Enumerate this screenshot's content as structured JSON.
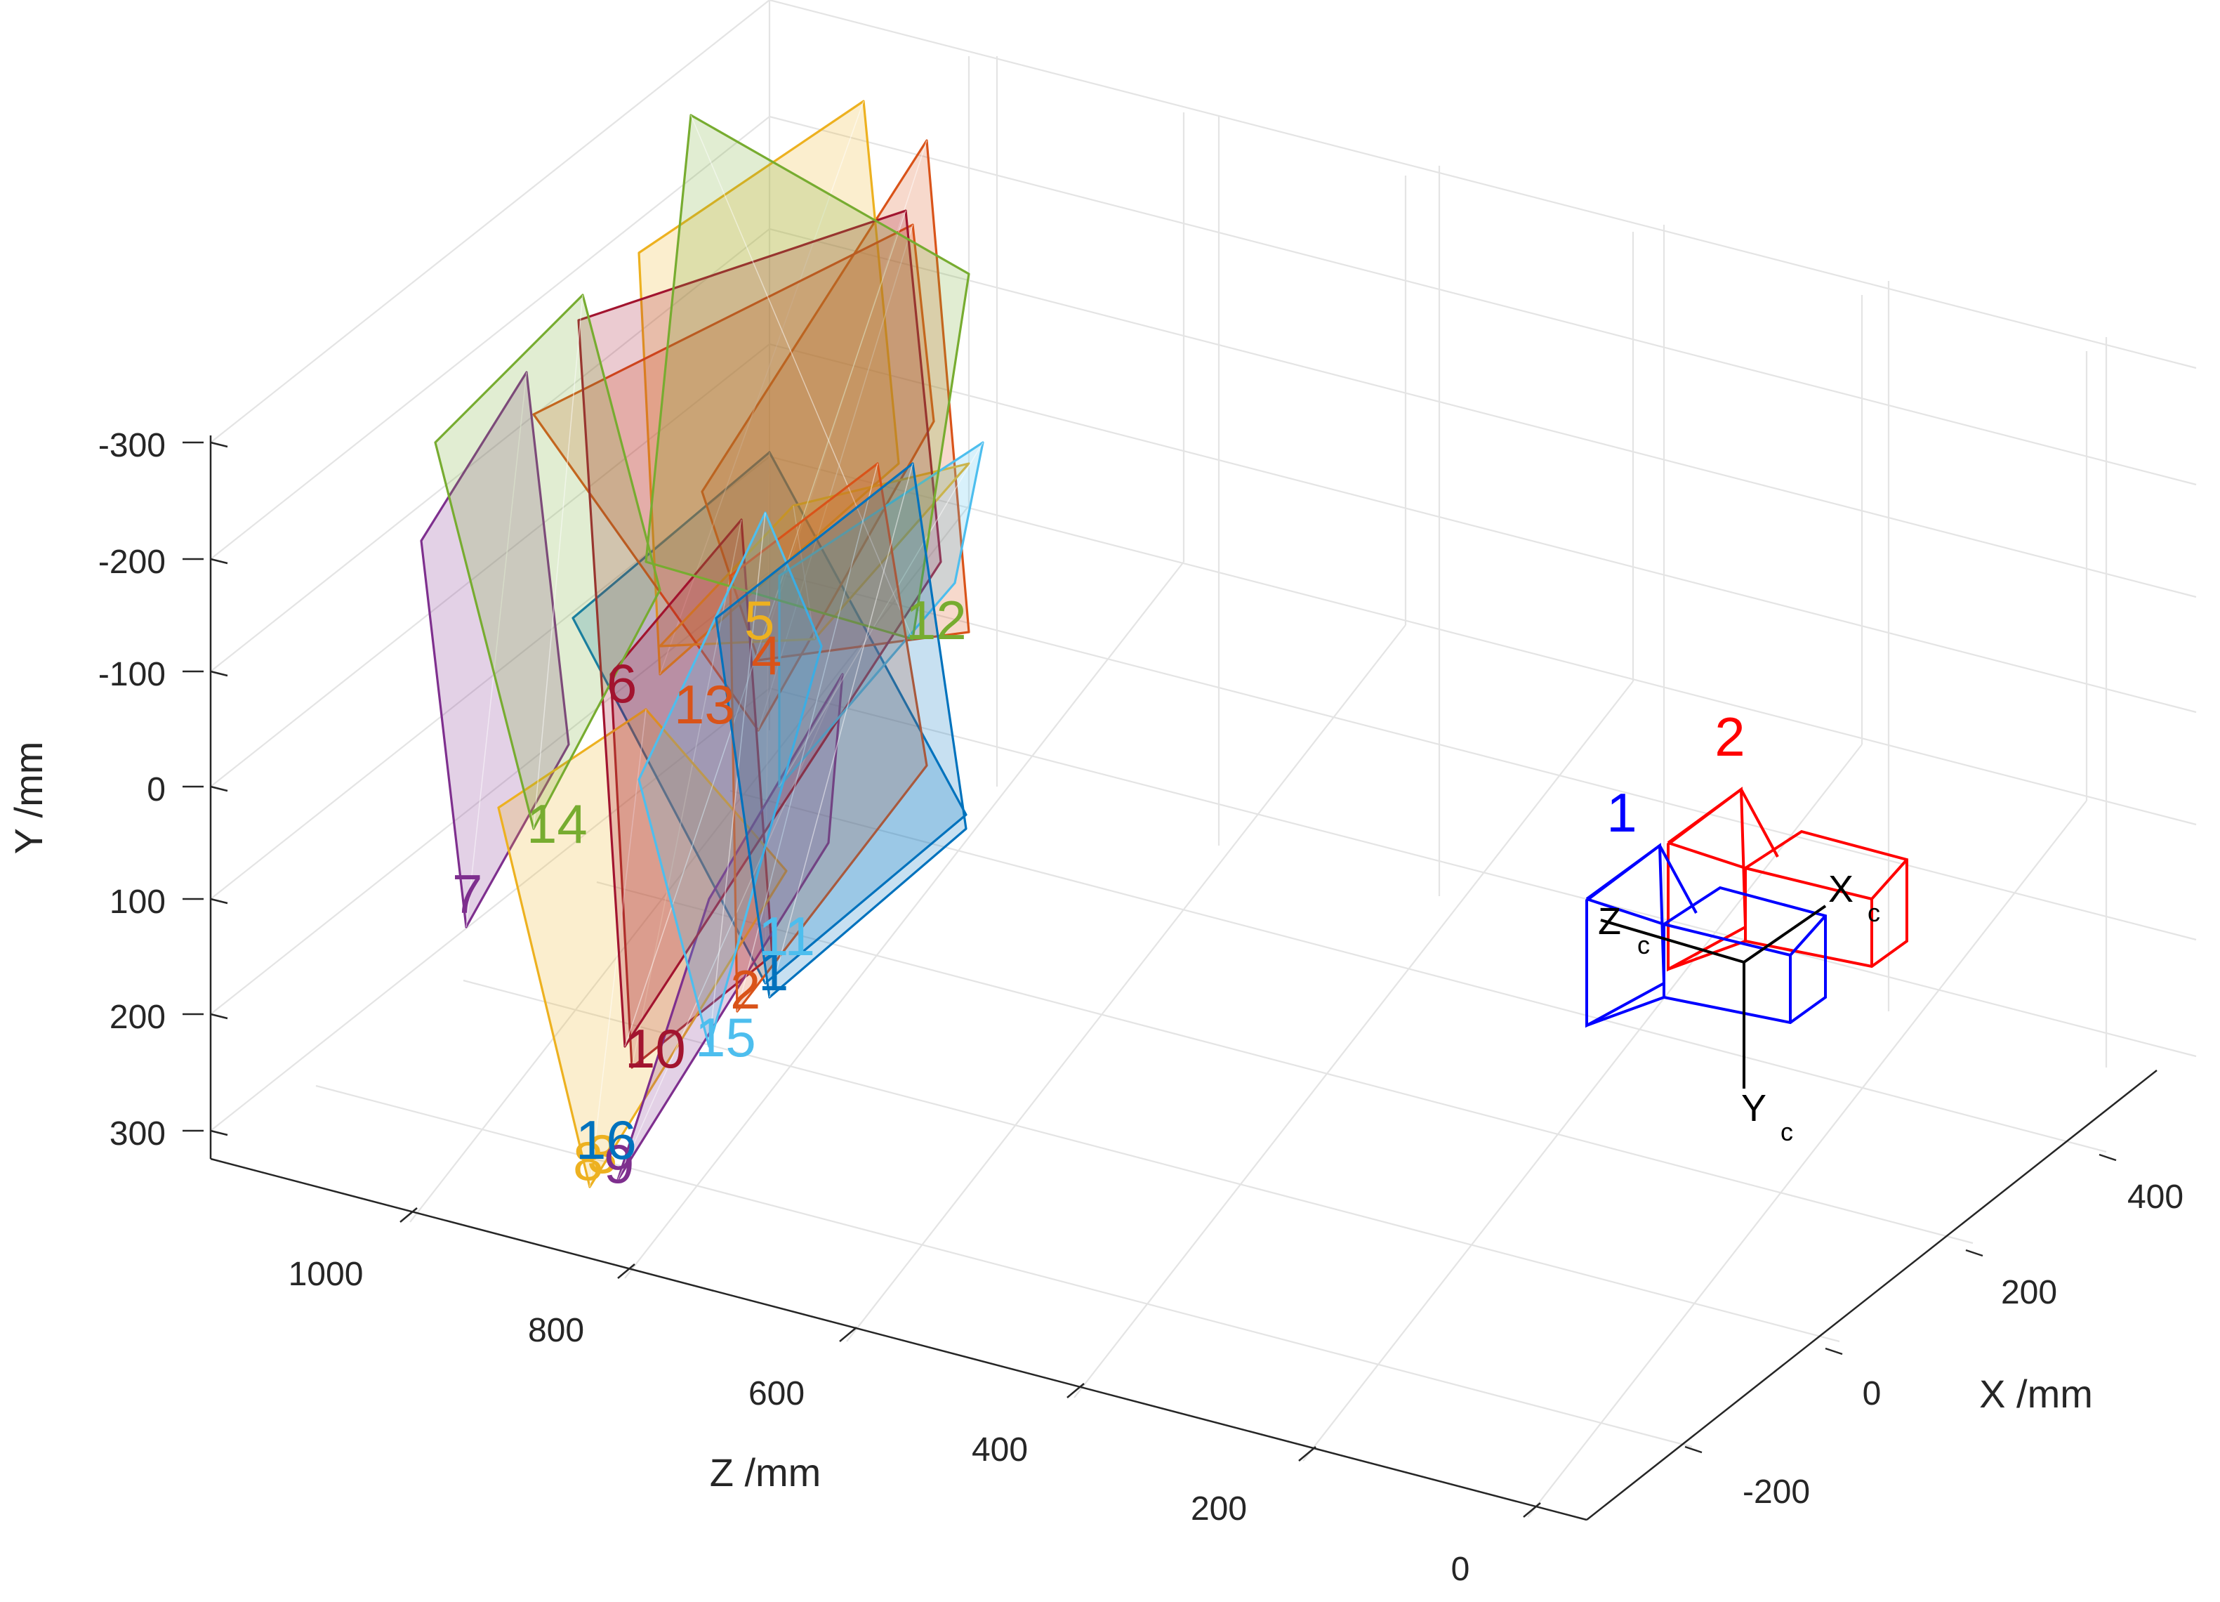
{
  "chart_data": {
    "type": "3d-extrinsics",
    "axes": {
      "x": {
        "label": "X /mm",
        "ticks": [
          "-200",
          "0",
          "200",
          "400"
        ]
      },
      "y": {
        "label": "Y /mm",
        "ticks": [
          "-300",
          "-200",
          "-100",
          "0",
          "100",
          "200",
          "300"
        ]
      },
      "z": {
        "label": "Z /mm",
        "ticks": [
          "1000",
          "800",
          "600",
          "400",
          "200",
          "0"
        ]
      }
    },
    "grid": true,
    "cameras": [
      {
        "label": "1",
        "color": "#0000ff"
      },
      {
        "label": "2",
        "color": "#ff0000"
      }
    ],
    "camera_frame": {
      "x": "X",
      "y": "Y",
      "z": "Z",
      "subscript": "c"
    },
    "boards": [
      {
        "label": "1",
        "color": "#0072bd"
      },
      {
        "label": "2",
        "color": "#d95319"
      },
      {
        "label": "3",
        "color": "#edb120"
      },
      {
        "label": "4",
        "color": "#d95319"
      },
      {
        "label": "5",
        "color": "#edb120"
      },
      {
        "label": "6",
        "color": "#a2142f"
      },
      {
        "label": "7",
        "color": "#7e2f8e"
      },
      {
        "label": "8",
        "color": "#edb120"
      },
      {
        "label": "9",
        "color": "#7e2f8e"
      },
      {
        "label": "10",
        "color": "#a2142f"
      },
      {
        "label": "11",
        "color": "#4dbeee"
      },
      {
        "label": "12",
        "color": "#77ac30"
      },
      {
        "label": "13",
        "color": "#d95319"
      },
      {
        "label": "14",
        "color": "#77ac30"
      },
      {
        "label": "15",
        "color": "#4dbeee"
      },
      {
        "label": "16",
        "color": "#0072bd"
      }
    ]
  }
}
